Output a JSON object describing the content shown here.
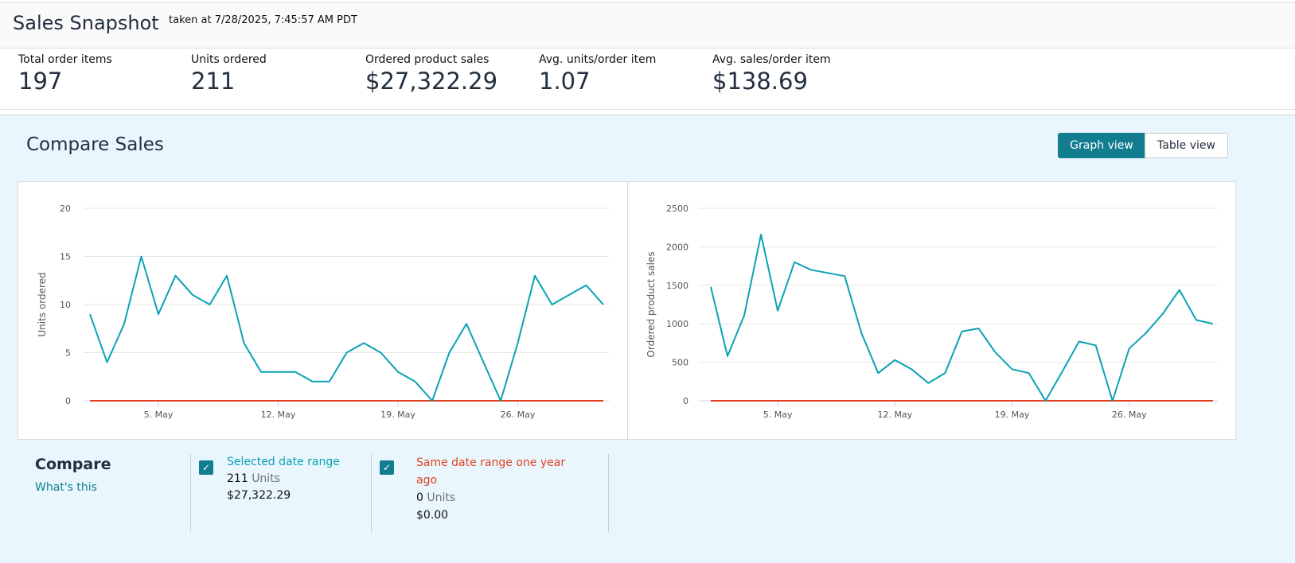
{
  "header": {
    "title": "Sales Snapshot",
    "subtitle": "taken at 7/28/2025, 7:45:57 AM PDT"
  },
  "metrics": [
    {
      "label": "Total order items",
      "value": "197"
    },
    {
      "label": "Units ordered",
      "value": "211"
    },
    {
      "label": "Ordered product sales",
      "value": "$27,322.29"
    },
    {
      "label": "Avg. units/order item",
      "value": "1.07"
    },
    {
      "label": "Avg. sales/order item",
      "value": "$138.69"
    }
  ],
  "compare_sales": {
    "title": "Compare Sales",
    "graph_view": "Graph view",
    "table_view": "Table view",
    "active_view": "Graph view"
  },
  "colors": {
    "selected": "#0aa2b4",
    "last_year": "#e3411f",
    "accent": "#127d8f"
  },
  "chart_data": [
    {
      "type": "line",
      "ylabel": "Units ordered",
      "ylim": [
        0,
        20
      ],
      "yticks": [
        "0",
        "5",
        "10",
        "15",
        "20"
      ],
      "xticks": [
        "5. May",
        "12. May",
        "19. May",
        "26. May"
      ],
      "grid": true,
      "x": [
        "2025-05-01",
        "2025-05-02",
        "2025-05-03",
        "2025-05-04",
        "2025-05-05",
        "2025-05-06",
        "2025-05-07",
        "2025-05-08",
        "2025-05-09",
        "2025-05-10",
        "2025-05-11",
        "2025-05-12",
        "2025-05-13",
        "2025-05-14",
        "2025-05-15",
        "2025-05-16",
        "2025-05-17",
        "2025-05-18",
        "2025-05-19",
        "2025-05-20",
        "2025-05-21",
        "2025-05-22",
        "2025-05-23",
        "2025-05-24",
        "2025-05-25",
        "2025-05-26",
        "2025-05-27",
        "2025-05-28",
        "2025-05-29",
        "2025-05-30",
        "2025-05-31"
      ],
      "series": [
        {
          "values": [
            9,
            4,
            8,
            15,
            9,
            13,
            11,
            10,
            13,
            6,
            3,
            3,
            3,
            2,
            2,
            5,
            6,
            5,
            3,
            2,
            0,
            5,
            8,
            4,
            0,
            6,
            13,
            10,
            11,
            12,
            10
          ]
        },
        {
          "values": [
            0,
            0,
            0,
            0,
            0,
            0,
            0,
            0,
            0,
            0,
            0,
            0,
            0,
            0,
            0,
            0,
            0,
            0,
            0,
            0,
            0,
            0,
            0,
            0,
            0,
            0,
            0,
            0,
            0,
            0,
            0
          ]
        }
      ]
    },
    {
      "type": "line",
      "ylabel": "Ordered product sales",
      "ylim": [
        0,
        2500
      ],
      "yticks": [
        "0",
        "500",
        "1000",
        "1500",
        "2000",
        "2500"
      ],
      "xticks": [
        "5. May",
        "12. May",
        "19. May",
        "26. May"
      ],
      "grid": true,
      "x": [
        "2025-05-01",
        "2025-05-02",
        "2025-05-03",
        "2025-05-04",
        "2025-05-05",
        "2025-05-06",
        "2025-05-07",
        "2025-05-08",
        "2025-05-09",
        "2025-05-10",
        "2025-05-11",
        "2025-05-12",
        "2025-05-13",
        "2025-05-14",
        "2025-05-15",
        "2025-05-16",
        "2025-05-17",
        "2025-05-18",
        "2025-05-19",
        "2025-05-20",
        "2025-05-21",
        "2025-05-22",
        "2025-05-23",
        "2025-05-24",
        "2025-05-25",
        "2025-05-26",
        "2025-05-27",
        "2025-05-28",
        "2025-05-29",
        "2025-05-30",
        "2025-05-31"
      ],
      "series": [
        {
          "values": [
            1480,
            580,
            1110,
            2160,
            1170,
            1800,
            1700,
            1660,
            1620,
            880,
            360,
            530,
            410,
            230,
            360,
            900,
            940,
            630,
            410,
            360,
            0,
            380,
            770,
            720,
            0,
            680,
            880,
            1130,
            1440,
            1050,
            1000
          ]
        },
        {
          "values": [
            0,
            0,
            0,
            0,
            0,
            0,
            0,
            0,
            0,
            0,
            0,
            0,
            0,
            0,
            0,
            0,
            0,
            0,
            0,
            0,
            0,
            0,
            0,
            0,
            0,
            0,
            0,
            0,
            0,
            0,
            0
          ]
        }
      ]
    }
  ],
  "compare": {
    "title": "Compare",
    "whats_this": "What's this",
    "selected": {
      "label": "Selected date range",
      "units": "211",
      "units_label": "Units",
      "sales": "$27,322.29",
      "checked": true
    },
    "last_year": {
      "label": "Same date range one year ago",
      "units": "0",
      "units_label": "Units",
      "sales": "$0.00",
      "checked": true
    }
  }
}
